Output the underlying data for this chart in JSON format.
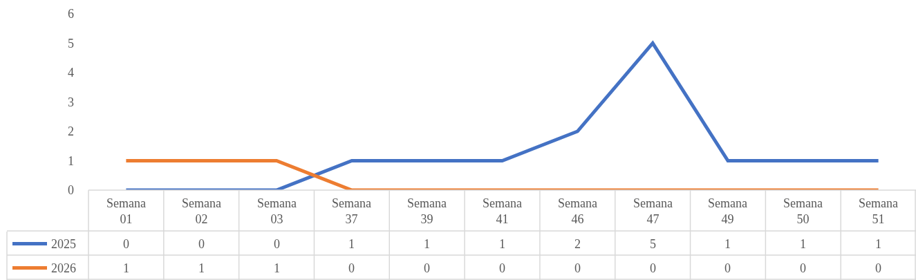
{
  "chart_data": {
    "type": "line",
    "categories": [
      "Semana 01",
      "Semana 02",
      "Semana 03",
      "Semana 37",
      "Semana 39",
      "Semana 41",
      "Semana 46",
      "Semana 47",
      "Semana 49",
      "Semana 50",
      "Semana 51"
    ],
    "series": [
      {
        "name": "2025",
        "color": "#4472c4",
        "values": [
          0,
          0,
          0,
          1,
          1,
          1,
          2,
          5,
          1,
          1,
          1
        ]
      },
      {
        "name": "2026",
        "color": "#ed7d31",
        "values": [
          1,
          1,
          1,
          0,
          0,
          0,
          0,
          0,
          0,
          0,
          0
        ]
      }
    ],
    "ylim": [
      0,
      6
    ],
    "yticks": [
      0,
      1,
      2,
      3,
      4,
      5,
      6
    ],
    "legend": "bottom left",
    "data_labels": true,
    "marker": "none",
    "line_style": "solid"
  }
}
